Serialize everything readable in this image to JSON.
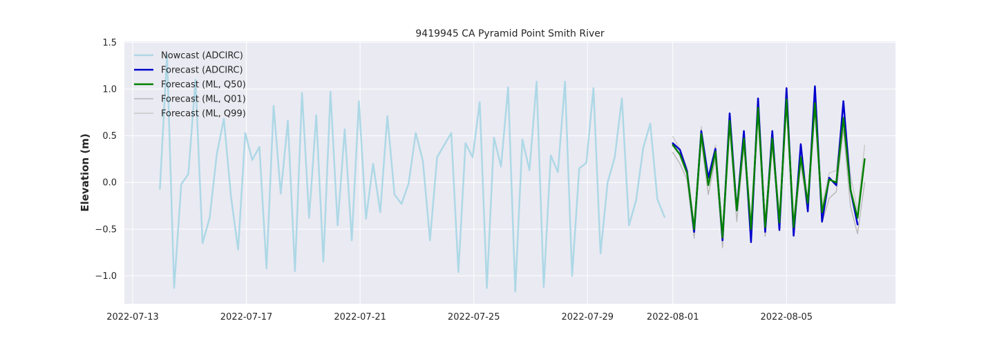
{
  "chart_data": {
    "type": "line",
    "title": "9419945 CA Pyramid Point Smith River",
    "xlabel": "",
    "ylabel": "Elevation (m)",
    "xlim": [
      "2022-07-12T17:00",
      "2022-08-08T20:00"
    ],
    "ylim": [
      -1.3,
      1.51
    ],
    "grid": true,
    "legend_position": "top-left",
    "x_ticks": [
      {
        "date": "2022-07-13",
        "label": "2022-07-13"
      },
      {
        "date": "2022-07-17",
        "label": "2022-07-17"
      },
      {
        "date": "2022-07-21",
        "label": "2022-07-21"
      },
      {
        "date": "2022-07-25",
        "label": "2022-07-25"
      },
      {
        "date": "2022-07-29",
        "label": "2022-07-29"
      },
      {
        "date": "2022-08-01",
        "label": "2022-08-01"
      },
      {
        "date": "2022-08-05",
        "label": "2022-08-05"
      }
    ],
    "y_ticks": [
      {
        "value": 1.5,
        "label": "1.5"
      },
      {
        "value": 1.0,
        "label": "1.0"
      },
      {
        "value": 0.5,
        "label": "0.5"
      },
      {
        "value": 0.0,
        "label": "0.0"
      },
      {
        "value": -0.5,
        "label": "−0.5"
      },
      {
        "value": -1.0,
        "label": "−1.0"
      }
    ],
    "series": [
      {
        "name": "Nowcast (ADCIRC)",
        "color": "#add8e6",
        "width": 2.5,
        "x": [
          "2022-07-13T23:00",
          "2022-07-14T05:00",
          "2022-07-14T11:00",
          "2022-07-14T17:00",
          "2022-07-14T23:00",
          "2022-07-15T05:00",
          "2022-07-15T11:00",
          "2022-07-15T17:00",
          "2022-07-15T23:00",
          "2022-07-16T05:00",
          "2022-07-16T11:00",
          "2022-07-16T17:00",
          "2022-07-16T23:00",
          "2022-07-17T05:00",
          "2022-07-17T11:00",
          "2022-07-17T17:00",
          "2022-07-17T23:00",
          "2022-07-18T05:00",
          "2022-07-18T11:00",
          "2022-07-18T17:00",
          "2022-07-18T23:00",
          "2022-07-19T05:00",
          "2022-07-19T11:00",
          "2022-07-19T17:00",
          "2022-07-19T23:00",
          "2022-07-20T05:00",
          "2022-07-20T11:00",
          "2022-07-20T17:00",
          "2022-07-20T23:00",
          "2022-07-21T05:00",
          "2022-07-21T11:00",
          "2022-07-21T17:00",
          "2022-07-21T23:00",
          "2022-07-22T05:00",
          "2022-07-22T11:00",
          "2022-07-22T17:00",
          "2022-07-22T23:00",
          "2022-07-23T05:00",
          "2022-07-23T11:00",
          "2022-07-23T17:00",
          "2022-07-24T05:00",
          "2022-07-24T11:00",
          "2022-07-24T17:00",
          "2022-07-24T23:00",
          "2022-07-25T05:00",
          "2022-07-25T11:00",
          "2022-07-25T17:00",
          "2022-07-25T23:00",
          "2022-07-26T05:00",
          "2022-07-26T11:00",
          "2022-07-26T17:00",
          "2022-07-26T23:00",
          "2022-07-27T05:00",
          "2022-07-27T11:00",
          "2022-07-27T17:00",
          "2022-07-27T23:00",
          "2022-07-28T05:00",
          "2022-07-28T11:00",
          "2022-07-28T17:00",
          "2022-07-28T23:00",
          "2022-07-29T05:00",
          "2022-07-29T11:00",
          "2022-07-29T17:00",
          "2022-07-29T23:00",
          "2022-07-30T05:00",
          "2022-07-30T11:00",
          "2022-07-30T17:00",
          "2022-07-30T23:00",
          "2022-07-31T05:00",
          "2022-07-31T11:00",
          "2022-07-31T17:00",
          "2022-07-31T23:00"
        ],
        "values": [
          -0.07,
          1.37,
          -1.13,
          -0.02,
          0.09,
          1.1,
          -0.65,
          -0.38,
          0.3,
          0.68,
          -0.15,
          -0.72,
          0.53,
          0.24,
          0.38,
          -0.92,
          0.82,
          -0.12,
          0.66,
          -0.95,
          0.96,
          -0.38,
          0.72,
          -0.85,
          0.97,
          -0.46,
          0.57,
          -0.62,
          0.87,
          -0.39,
          0.2,
          -0.32,
          0.71,
          -0.13,
          -0.23,
          -0.01,
          0.53,
          0.23,
          -0.62,
          0.27,
          0.53,
          -0.96,
          0.42,
          0.27,
          0.86,
          -1.13,
          0.48,
          0.17,
          1.02,
          -1.17,
          0.46,
          0.13,
          1.08,
          -1.12,
          0.29,
          0.11,
          1.08,
          -1.0,
          0.15,
          0.21,
          1.01,
          -0.76,
          0.0,
          0.27,
          0.9,
          -0.46,
          -0.19,
          0.37,
          0.63,
          -0.18,
          -0.37,
          null
        ]
      },
      {
        "name": "Forecast (ML, Q01)",
        "color": "#b8b8b8",
        "width": 1.4,
        "x": [
          "2022-08-01T00:00",
          "2022-08-01T06:00",
          "2022-08-01T12:00",
          "2022-08-01T18:00",
          "2022-08-02T00:00",
          "2022-08-02T06:00",
          "2022-08-02T12:00",
          "2022-08-02T18:00",
          "2022-08-03T00:00",
          "2022-08-03T06:00",
          "2022-08-03T12:00",
          "2022-08-03T18:00",
          "2022-08-04T00:00",
          "2022-08-04T06:00",
          "2022-08-04T12:00",
          "2022-08-04T18:00",
          "2022-08-05T00:00",
          "2022-08-05T06:00",
          "2022-08-05T12:00",
          "2022-08-05T18:00",
          "2022-08-06T00:00",
          "2022-08-06T06:00",
          "2022-08-06T12:00",
          "2022-08-06T18:00",
          "2022-08-07T00:00",
          "2022-08-07T06:00",
          "2022-08-07T12:00",
          "2022-08-07T18:00"
        ],
        "values": [
          0.32,
          0.2,
          0.03,
          -0.6,
          0.45,
          -0.13,
          0.25,
          -0.7,
          0.58,
          -0.42,
          0.38,
          -0.6,
          0.7,
          -0.58,
          0.38,
          -0.5,
          0.8,
          -0.58,
          0.2,
          -0.32,
          0.78,
          -0.43,
          -0.17,
          -0.1,
          0.57,
          -0.26,
          -0.55,
          0.0
        ]
      },
      {
        "name": "Forecast (ML, Q99)",
        "color": "#c8c8c8",
        "width": 1.4,
        "x": [
          "2022-08-01T00:00",
          "2022-08-01T06:00",
          "2022-08-01T12:00",
          "2022-08-01T18:00",
          "2022-08-02T00:00",
          "2022-08-02T06:00",
          "2022-08-02T12:00",
          "2022-08-02T18:00",
          "2022-08-03T00:00",
          "2022-08-03T06:00",
          "2022-08-03T12:00",
          "2022-08-03T18:00",
          "2022-08-04T00:00",
          "2022-08-04T06:00",
          "2022-08-04T12:00",
          "2022-08-04T18:00",
          "2022-08-05T00:00",
          "2022-08-05T06:00",
          "2022-08-05T12:00",
          "2022-08-05T18:00",
          "2022-08-06T00:00",
          "2022-08-06T06:00",
          "2022-08-06T12:00",
          "2022-08-06T18:00",
          "2022-08-07T00:00",
          "2022-08-07T06:00",
          "2022-08-07T12:00",
          "2022-08-07T18:00"
        ],
        "values": [
          0.49,
          0.36,
          0.16,
          -0.45,
          0.6,
          0.05,
          0.4,
          -0.52,
          0.72,
          -0.25,
          0.53,
          -0.45,
          0.88,
          -0.42,
          0.53,
          -0.35,
          1.0,
          -0.4,
          0.37,
          -0.18,
          0.95,
          -0.25,
          0.1,
          0.13,
          0.82,
          0.08,
          -0.3,
          0.4
        ]
      },
      {
        "name": "Forecast (ADCIRC)",
        "color": "#0000cd",
        "width": 2.5,
        "x": [
          "2022-08-01T00:00",
          "2022-08-01T06:00",
          "2022-08-01T12:00",
          "2022-08-01T18:00",
          "2022-08-02T00:00",
          "2022-08-02T06:00",
          "2022-08-02T12:00",
          "2022-08-02T18:00",
          "2022-08-03T00:00",
          "2022-08-03T06:00",
          "2022-08-03T12:00",
          "2022-08-03T18:00",
          "2022-08-04T00:00",
          "2022-08-04T06:00",
          "2022-08-04T12:00",
          "2022-08-04T18:00",
          "2022-08-05T00:00",
          "2022-08-05T06:00",
          "2022-08-05T12:00",
          "2022-08-05T18:00",
          "2022-08-06T00:00",
          "2022-08-06T06:00",
          "2022-08-06T12:00",
          "2022-08-06T18:00",
          "2022-08-07T00:00",
          "2022-08-07T06:00",
          "2022-08-07T12:00",
          "2022-08-07T18:00"
        ],
        "values": [
          0.42,
          0.35,
          0.12,
          -0.53,
          0.55,
          0.05,
          0.36,
          -0.62,
          0.74,
          -0.3,
          0.55,
          -0.64,
          0.9,
          -0.53,
          0.55,
          -0.51,
          1.01,
          -0.57,
          0.41,
          -0.31,
          1.03,
          -0.42,
          0.05,
          -0.03,
          0.87,
          -0.08,
          -0.45,
          null
        ]
      },
      {
        "name": "Forecast (ML, Q50)",
        "color": "#008000",
        "width": 2.5,
        "x": [
          "2022-08-01T00:00",
          "2022-08-01T06:00",
          "2022-08-01T12:00",
          "2022-08-01T18:00",
          "2022-08-02T00:00",
          "2022-08-02T06:00",
          "2022-08-02T12:00",
          "2022-08-02T18:00",
          "2022-08-03T00:00",
          "2022-08-03T06:00",
          "2022-08-03T12:00",
          "2022-08-03T18:00",
          "2022-08-04T00:00",
          "2022-08-04T06:00",
          "2022-08-04T12:00",
          "2022-08-04T18:00",
          "2022-08-05T00:00",
          "2022-08-05T06:00",
          "2022-08-05T12:00",
          "2022-08-05T18:00",
          "2022-08-06T00:00",
          "2022-08-06T06:00",
          "2022-08-06T12:00",
          "2022-08-06T18:00",
          "2022-08-07T00:00",
          "2022-08-07T06:00",
          "2022-08-07T12:00",
          "2022-08-07T18:00"
        ],
        "values": [
          0.4,
          0.3,
          0.1,
          -0.5,
          0.52,
          -0.03,
          0.33,
          -0.59,
          0.66,
          -0.3,
          0.47,
          -0.5,
          0.8,
          -0.48,
          0.47,
          -0.43,
          0.89,
          -0.48,
          0.27,
          -0.22,
          0.85,
          -0.32,
          0.03,
          0.0,
          0.69,
          -0.08,
          -0.38,
          0.25
        ]
      }
    ],
    "legend": [
      {
        "label": "Nowcast (ADCIRC)",
        "color": "#add8e6",
        "width": 2.5
      },
      {
        "label": "Forecast (ADCIRC)",
        "color": "#0000cd",
        "width": 2.5
      },
      {
        "label": "Forecast (ML, Q50)",
        "color": "#008000",
        "width": 2.5
      },
      {
        "label": "Forecast (ML, Q01)",
        "color": "#b8b8b8",
        "width": 1.4
      },
      {
        "label": "Forecast (ML, Q99)",
        "color": "#c8c8c8",
        "width": 1.4
      }
    ],
    "background_color": "#eaeaf2",
    "grid_color": "#ffffff"
  }
}
